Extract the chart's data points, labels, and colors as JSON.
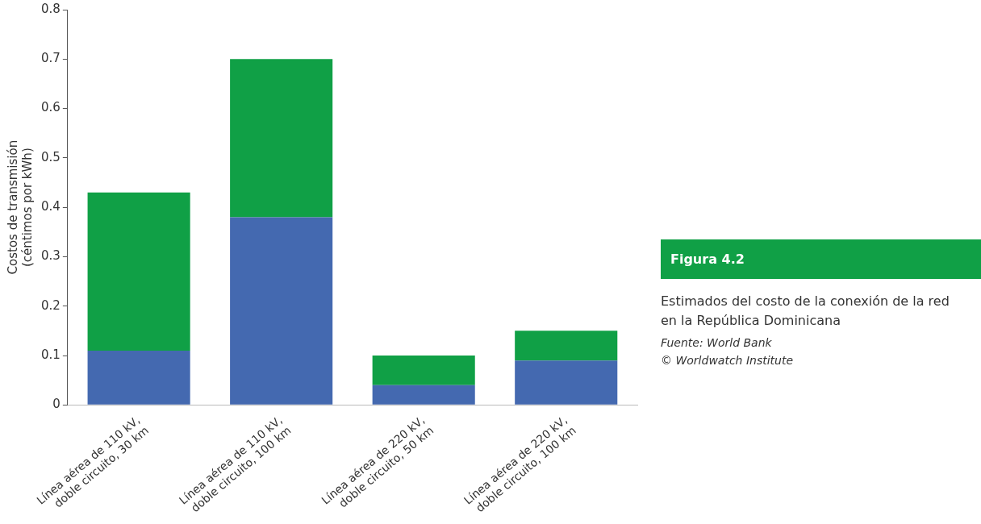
{
  "chart_data": {
    "type": "bar",
    "title": "Figura 4.2",
    "subtitle": "Estimados del costo de la conexión de la red en la República Dominicana",
    "ylabel": "Costos de transmisión\n(céntimos por kWh)",
    "annotations": [
      "Fuente: World Bank",
      "© Worldwatch Institute"
    ],
    "categories": [
      "Línea aérea de 110 kV, doble circuito, 30 km",
      "Línea aérea de 110 kV, doble circuito, 100 km",
      "Línea aérea de 220 kV, doble circuito, 50 km",
      "Línea aérea de 220 kV, doble circuito, 100 km"
    ],
    "stacked": true,
    "series": [
      {
        "color": "#4469b0",
        "values": [
          0.11,
          0.38,
          0.04,
          0.09
        ]
      },
      {
        "color": "#10a046",
        "values": [
          0.32,
          0.32,
          0.06,
          0.06
        ]
      }
    ],
    "ylim": [
      0,
      0.8
    ],
    "yticks": [
      0,
      0.1,
      0.2,
      0.3,
      0.4,
      0.5,
      0.6,
      0.7,
      0.8
    ],
    "grid": false,
    "legend": false
  }
}
